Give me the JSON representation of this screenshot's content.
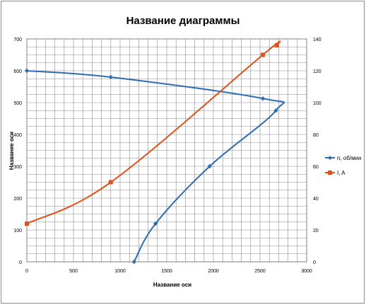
{
  "chart_data": {
    "type": "line",
    "title": "Название диаграммы",
    "xlabel": "Название оси",
    "ylabel": "Название оси",
    "y2label": "",
    "xlim": [
      0,
      3000
    ],
    "ylim": [
      0,
      700
    ],
    "y2lim": [
      0,
      140
    ],
    "x_ticks": [
      0,
      500,
      1000,
      1500,
      2000,
      2500,
      3000
    ],
    "y_ticks": [
      0,
      100,
      200,
      300,
      400,
      500,
      600,
      700
    ],
    "y2_ticks": [
      0,
      20,
      40,
      60,
      80,
      100,
      120,
      140
    ],
    "grid": true,
    "legend_position": "right",
    "series": [
      {
        "name": "n, об/мин",
        "axis": "left",
        "color": "#2e6db4",
        "marker": "diamond",
        "points": [
          [
            1150,
            0
          ],
          [
            1380,
            120
          ],
          [
            1960,
            300
          ],
          [
            2670,
            475
          ],
          [
            2530,
            513
          ],
          [
            900,
            580
          ],
          [
            0,
            600
          ]
        ]
      },
      {
        "name": "I, A",
        "axis": "right",
        "color": "#e0501a",
        "marker": "square",
        "points": [
          [
            0,
            24
          ],
          [
            900,
            50
          ],
          [
            2530,
            130
          ],
          [
            2680,
            136
          ]
        ]
      }
    ]
  }
}
